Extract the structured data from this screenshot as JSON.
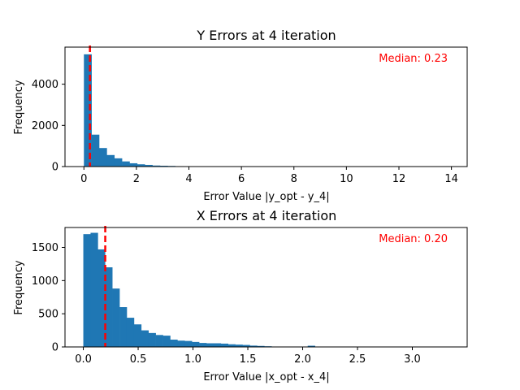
{
  "chart_data": [
    {
      "type": "bar",
      "title": "Y Errors at 4 iteration",
      "xlabel": "Error Value |y_opt - y_4|",
      "ylabel": "Frequency",
      "xlim": [
        -0.72,
        14.6
      ],
      "ylim": [
        0,
        5800
      ],
      "xticks": [
        0,
        2,
        4,
        6,
        8,
        10,
        12,
        14
      ],
      "yticks": [
        0,
        2000,
        4000
      ],
      "bin_width": 0.29,
      "bin_start": 0,
      "values": [
        5450,
        1550,
        900,
        560,
        400,
        250,
        160,
        110,
        80,
        50,
        40,
        30,
        20,
        15,
        10,
        8,
        6,
        5,
        4,
        3
      ],
      "median": 0.23,
      "median_text": "Median: 0.23",
      "median_color": "#ff0000",
      "bar_color": "#1f77b4",
      "grid": false
    },
    {
      "type": "bar",
      "title": "X Errors at 4 iteration",
      "xlabel": "Error Value |x_opt - x_4|",
      "ylabel": "Frequency",
      "xlim": [
        -0.167,
        3.5
      ],
      "ylim": [
        0,
        1800
      ],
      "xticks": [
        0.0,
        0.5,
        1.0,
        1.5,
        2.0,
        2.5,
        3.0
      ],
      "xtick_labels": [
        "0.0",
        "0.5",
        "1.0",
        "1.5",
        "2.0",
        "2.5",
        "3.0"
      ],
      "yticks": [
        0,
        500,
        1000,
        1500
      ],
      "bin_width": 0.066,
      "bin_start": 0,
      "values": [
        1700,
        1720,
        1470,
        1200,
        880,
        600,
        440,
        340,
        250,
        210,
        180,
        170,
        110,
        95,
        90,
        75,
        60,
        55,
        55,
        50,
        40,
        35,
        30,
        20,
        15,
        10,
        5,
        5,
        3,
        2,
        2,
        18,
        2,
        1
      ],
      "median": 0.2,
      "median_text": "Median: 0.20",
      "median_color": "#ff0000",
      "bar_color": "#1f77b4",
      "grid": false
    }
  ]
}
